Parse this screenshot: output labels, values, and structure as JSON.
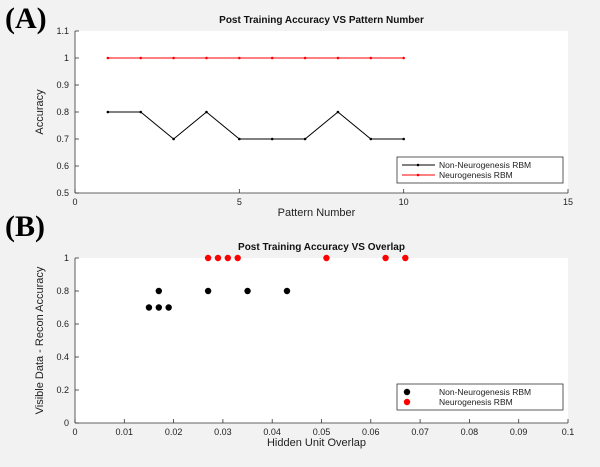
{
  "panel_a_label": "(A)",
  "panel_b_label": "(B)",
  "chart_data": [
    {
      "type": "line",
      "title": "Post Training Accuracy VS Pattern Number",
      "xlabel": "Pattern Number",
      "ylabel": "Accuracy",
      "xlim": [
        0,
        15
      ],
      "ylim": [
        0.5,
        1.1
      ],
      "xticks": [
        0,
        5,
        10,
        15
      ],
      "yticks": [
        0.5,
        0.6,
        0.7,
        0.8,
        0.9,
        1,
        1.1
      ],
      "grid": false,
      "legend_position": "bottom-right",
      "x": [
        1,
        2,
        3,
        4,
        5,
        6,
        7,
        8,
        9,
        10
      ],
      "series": [
        {
          "name": "Non-Neurogenesis RBM",
          "color": "#000000",
          "values": [
            0.8,
            0.8,
            0.7,
            0.8,
            0.7,
            0.7,
            0.7,
            0.8,
            0.7,
            0.7
          ]
        },
        {
          "name": "Neurogenesis RBM",
          "color": "#ff0000",
          "values": [
            1,
            1,
            1,
            1,
            1,
            1,
            1,
            1,
            1,
            1
          ]
        }
      ]
    },
    {
      "type": "scatter",
      "title": "Post Training Accuracy VS Overlap",
      "xlabel": "Hidden Unit Overlap",
      "ylabel": "Visible Data - Recon Accuracy",
      "xlim": [
        0,
        0.1
      ],
      "ylim": [
        0,
        1
      ],
      "xticks": [
        0,
        0.01,
        0.02,
        0.03,
        0.04,
        0.05,
        0.06,
        0.07,
        0.08,
        0.09,
        0.1
      ],
      "yticks": [
        0,
        0.2,
        0.4,
        0.6,
        0.8,
        1
      ],
      "grid": false,
      "legend_position": "bottom-right",
      "series": [
        {
          "name": "Non-Neurogenesis RBM",
          "color": "#000000",
          "points": [
            [
              0.015,
              0.7
            ],
            [
              0.017,
              0.7
            ],
            [
              0.019,
              0.7
            ],
            [
              0.017,
              0.8
            ],
            [
              0.027,
              0.8
            ],
            [
              0.035,
              0.8
            ],
            [
              0.043,
              0.8
            ]
          ]
        },
        {
          "name": "Neurogenesis RBM",
          "color": "#ff0000",
          "points": [
            [
              0.027,
              1
            ],
            [
              0.029,
              1
            ],
            [
              0.031,
              1
            ],
            [
              0.033,
              1
            ],
            [
              0.051,
              1
            ],
            [
              0.063,
              1
            ],
            [
              0.067,
              1
            ]
          ]
        }
      ]
    }
  ]
}
